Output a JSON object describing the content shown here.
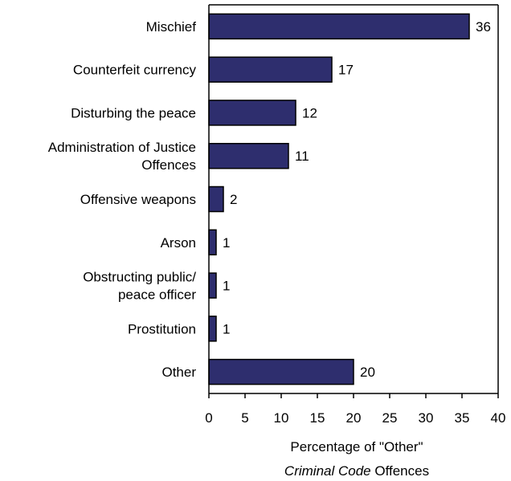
{
  "chart_data": {
    "type": "bar",
    "orientation": "horizontal",
    "categories": [
      [
        "Mischief"
      ],
      [
        "Counterfeit currency"
      ],
      [
        "Disturbing the peace"
      ],
      [
        "Administration of Justice",
        "Offences"
      ],
      [
        "Offensive weapons"
      ],
      [
        "Arson"
      ],
      [
        "Obstructing public/",
        "peace officer"
      ],
      [
        "Prostitution"
      ],
      [
        "Other"
      ]
    ],
    "values": [
      36,
      17,
      12,
      11,
      2,
      1,
      1,
      1,
      20
    ],
    "data_labels": [
      "36",
      "17",
      "12",
      "11",
      "2",
      "1",
      "1",
      "1",
      "20"
    ],
    "xlim": [
      0,
      40
    ],
    "xticks": [
      0,
      5,
      10,
      15,
      20,
      25,
      30,
      35,
      40
    ],
    "xlabel": {
      "line1": "Percentage of \"Other\"",
      "line2_italic": "Criminal Code",
      "line2_rest": " Offences"
    },
    "title": "",
    "bar_color": "#2e2e6e",
    "grid": false,
    "legend": "none"
  }
}
